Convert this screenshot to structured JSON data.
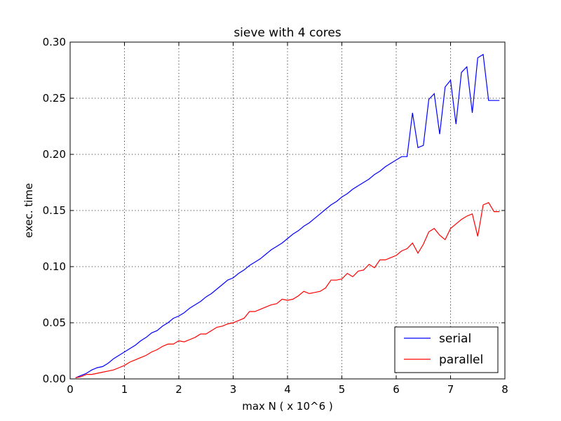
{
  "chart_data": {
    "type": "line",
    "title": "sieve with 4 cores",
    "xlabel": "max N ( x 10^6 )",
    "ylabel": "exec. time",
    "xlim": [
      0,
      8
    ],
    "ylim": [
      0,
      0.3
    ],
    "xticks": [
      0,
      1,
      2,
      3,
      4,
      5,
      6,
      7,
      8
    ],
    "xtick_labels": [
      "0",
      "1",
      "2",
      "3",
      "4",
      "5",
      "6",
      "7",
      "8"
    ],
    "yticks": [
      0,
      0.05,
      0.1,
      0.15,
      0.2,
      0.25,
      0.3
    ],
    "ytick_labels": [
      "0.00",
      "0.05",
      "0.10",
      "0.15",
      "0.20",
      "0.25",
      "0.30"
    ],
    "grid": true,
    "legend_position": "bottom-right",
    "x": [
      0.1,
      0.2,
      0.3,
      0.4,
      0.5,
      0.6,
      0.7,
      0.8,
      0.9,
      1.0,
      1.1,
      1.2,
      1.3,
      1.4,
      1.5,
      1.6,
      1.7,
      1.8,
      1.9,
      2.0,
      2.1,
      2.2,
      2.3,
      2.4,
      2.5,
      2.6,
      2.7,
      2.8,
      2.9,
      3.0,
      3.1,
      3.2,
      3.3,
      3.4,
      3.5,
      3.6,
      3.7,
      3.8,
      3.9,
      4.0,
      4.1,
      4.2,
      4.3,
      4.4,
      4.5,
      4.6,
      4.7,
      4.8,
      4.9,
      5.0,
      5.1,
      5.2,
      5.3,
      5.4,
      5.5,
      5.6,
      5.7,
      5.8,
      5.9,
      6.0,
      6.1,
      6.2,
      6.3,
      6.4,
      6.5,
      6.6,
      6.7,
      6.8,
      6.9,
      7.0,
      7.1,
      7.2,
      7.3,
      7.4,
      7.5,
      7.6,
      7.7,
      7.8,
      7.9
    ],
    "series": [
      {
        "name": "serial",
        "color": "#0000ff",
        "values": [
          0.001,
          0.003,
          0.005,
          0.008,
          0.01,
          0.011,
          0.014,
          0.018,
          0.021,
          0.024,
          0.027,
          0.03,
          0.034,
          0.037,
          0.041,
          0.043,
          0.047,
          0.05,
          0.054,
          0.056,
          0.059,
          0.063,
          0.066,
          0.069,
          0.073,
          0.076,
          0.08,
          0.084,
          0.088,
          0.09,
          0.094,
          0.097,
          0.101,
          0.104,
          0.107,
          0.111,
          0.115,
          0.118,
          0.121,
          0.125,
          0.129,
          0.132,
          0.136,
          0.139,
          0.143,
          0.147,
          0.151,
          0.155,
          0.158,
          0.162,
          0.165,
          0.169,
          0.172,
          0.175,
          0.178,
          0.182,
          0.185,
          0.189,
          0.192,
          0.195,
          0.198,
          0.198,
          0.237,
          0.206,
          0.208,
          0.249,
          0.254,
          0.218,
          0.26,
          0.266,
          0.227,
          0.273,
          0.278,
          0.237,
          0.286,
          0.289,
          0.248,
          0.248,
          0.248
        ]
      },
      {
        "name": "parallel",
        "color": "#ff0000",
        "values": [
          0.001,
          0.002,
          0.004,
          0.004,
          0.005,
          0.006,
          0.007,
          0.008,
          0.01,
          0.012,
          0.015,
          0.017,
          0.019,
          0.021,
          0.024,
          0.026,
          0.029,
          0.031,
          0.031,
          0.034,
          0.033,
          0.035,
          0.037,
          0.04,
          0.04,
          0.043,
          0.046,
          0.047,
          0.049,
          0.05,
          0.052,
          0.054,
          0.06,
          0.06,
          0.062,
          0.064,
          0.066,
          0.067,
          0.071,
          0.07,
          0.071,
          0.074,
          0.078,
          0.076,
          0.077,
          0.078,
          0.081,
          0.088,
          0.088,
          0.089,
          0.094,
          0.091,
          0.096,
          0.097,
          0.102,
          0.099,
          0.106,
          0.106,
          0.108,
          0.11,
          0.114,
          0.116,
          0.121,
          0.112,
          0.12,
          0.131,
          0.134,
          0.128,
          0.124,
          0.134,
          0.138,
          0.142,
          0.145,
          0.147,
          0.127,
          0.155,
          0.157,
          0.149,
          0.149
        ]
      }
    ]
  }
}
